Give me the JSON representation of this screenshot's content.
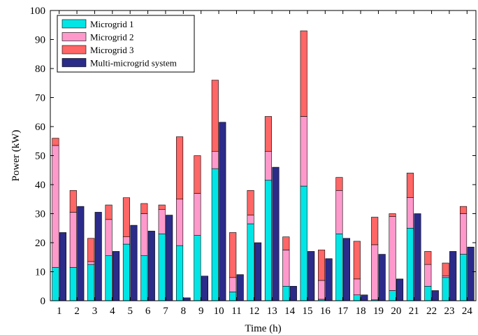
{
  "chart_data": {
    "type": "bar",
    "subtype": "stacked-and-grouped",
    "title": "",
    "xlabel": "Time (h)",
    "ylabel": "Power (kW)",
    "ylim": [
      0,
      100
    ],
    "yticks": [
      0,
      10,
      20,
      30,
      40,
      50,
      60,
      70,
      80,
      90,
      100
    ],
    "grid": false,
    "legend_position": "top-left",
    "categories": [
      "1",
      "2",
      "3",
      "4",
      "5",
      "6",
      "7",
      "8",
      "9",
      "10",
      "11",
      "12",
      "13",
      "14",
      "15",
      "16",
      "17",
      "18",
      "19",
      "20",
      "21",
      "22",
      "23",
      "24"
    ],
    "stacked_series": [
      {
        "name": "Microgrid 1",
        "color": "#00e5e5",
        "values": [
          11.5,
          11.5,
          12.5,
          15.5,
          19.5,
          15.5,
          23.0,
          19.0,
          22.5,
          45.5,
          3.0,
          26.5,
          41.5,
          5.0,
          39.5,
          0.5,
          23.0,
          2.0,
          0.3,
          3.5,
          25.0,
          5.0,
          8.0,
          16.0
        ]
      },
      {
        "name": "Microgrid 2",
        "color": "#ff99cc",
        "values": [
          42.0,
          19.0,
          1.0,
          12.5,
          2.5,
          14.5,
          8.5,
          16.0,
          14.5,
          6.0,
          5.0,
          3.0,
          10.0,
          12.5,
          24.0,
          6.5,
          15.0,
          5.5,
          19.0,
          25.5,
          10.5,
          7.5,
          0.5,
          14.0
        ]
      },
      {
        "name": "Microgrid 3",
        "color": "#ff6666",
        "values": [
          2.5,
          7.5,
          8.0,
          5.0,
          13.5,
          3.5,
          1.5,
          21.5,
          13.0,
          24.5,
          15.5,
          8.5,
          12.0,
          4.5,
          29.5,
          10.5,
          4.5,
          13.0,
          9.5,
          1.0,
          8.5,
          4.5,
          4.5,
          2.5
        ]
      }
    ],
    "single_series": [
      {
        "name": "Multi-microgrid system",
        "color": "#2b2b8a",
        "values": [
          23.5,
          32.5,
          30.5,
          17.0,
          26.0,
          24.0,
          29.5,
          1.0,
          8.5,
          61.5,
          9.0,
          20.0,
          46.0,
          5.0,
          17.0,
          14.5,
          21.5,
          2.0,
          16.0,
          7.5,
          30.0,
          3.5,
          17.0,
          18.5
        ]
      }
    ]
  }
}
